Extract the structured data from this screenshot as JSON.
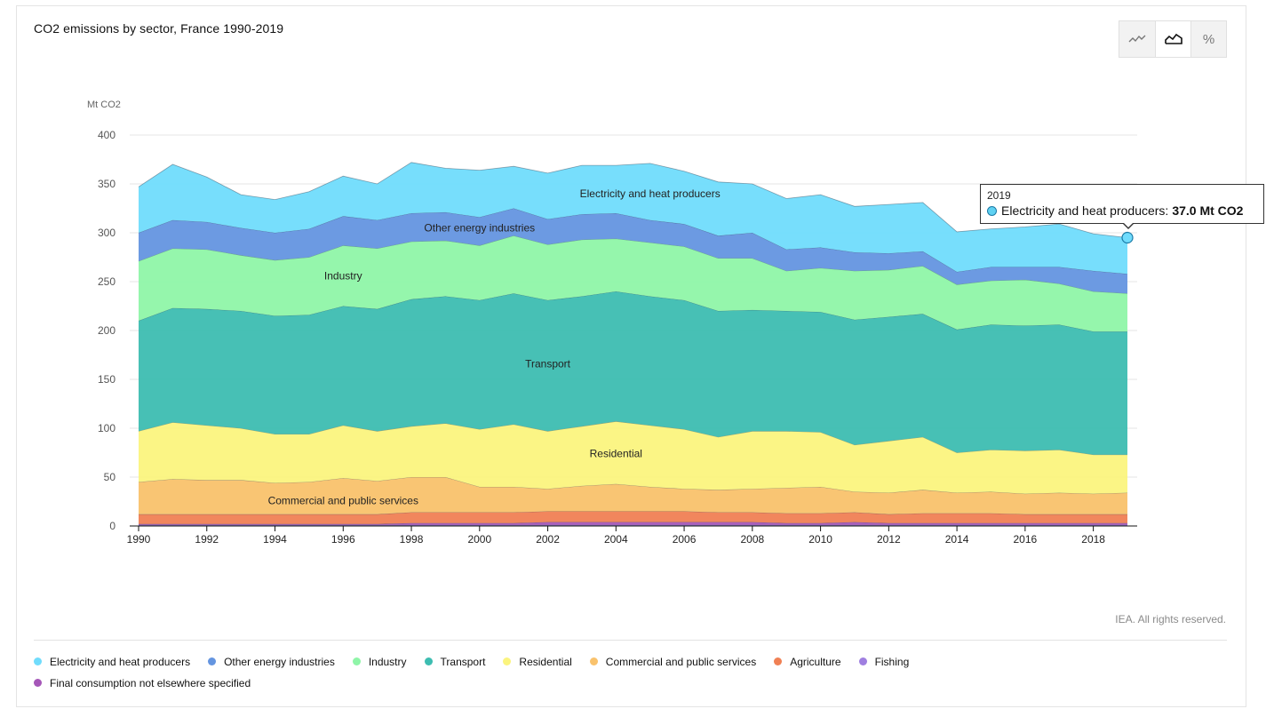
{
  "header": {
    "title": "CO2 emissions by sector, France 1990-2019"
  },
  "toggles": [
    {
      "name": "line-chart-toggle-icon",
      "glyph": "⌇",
      "active": false
    },
    {
      "name": "area-chart-toggle-icon",
      "glyph": "⛰",
      "active": true
    },
    {
      "name": "percent-toggle-icon",
      "glyph": "%",
      "active": false
    }
  ],
  "footer": {
    "credit": "IEA. All rights reserved."
  },
  "tooltip": {
    "year": "2019",
    "series": "Electricity and heat producers:",
    "value": "37.0 Mt CO2",
    "color": "#5fd1f2"
  },
  "chart_data": {
    "type": "area",
    "stacked": true,
    "title": "CO2 emissions by sector, France 1990-2019",
    "ylabel": "Mt CO2",
    "xlabel": "",
    "ylim": [
      0,
      400
    ],
    "yticks": [
      0,
      50,
      100,
      150,
      200,
      250,
      300,
      350,
      400
    ],
    "xlim": [
      1990,
      2019
    ],
    "xticks": [
      1990,
      1992,
      1994,
      1996,
      1998,
      2000,
      2002,
      2004,
      2006,
      2008,
      2010,
      2012,
      2014,
      2016,
      2018
    ],
    "grid": true,
    "legend_position": "bottom",
    "x": [
      1990,
      1991,
      1992,
      1993,
      1994,
      1995,
      1996,
      1997,
      1998,
      1999,
      2000,
      2001,
      2002,
      2003,
      2004,
      2005,
      2006,
      2007,
      2008,
      2009,
      2010,
      2011,
      2012,
      2013,
      2014,
      2015,
      2016,
      2017,
      2018,
      2019
    ],
    "series": [
      {
        "name": "Fishing",
        "color": "#9f7fe0",
        "values": [
          1,
          1,
          1,
          1,
          1,
          1,
          1,
          1,
          1,
          1,
          1,
          1,
          1,
          1,
          1,
          1,
          1,
          1,
          1,
          1,
          1,
          1,
          1,
          1,
          1,
          1,
          1,
          1,
          1,
          1
        ]
      },
      {
        "name": "Final consumption not elsewhere specified",
        "color": "#a557b8",
        "values": [
          1,
          1,
          1,
          1,
          1,
          1,
          1,
          1,
          2,
          2,
          2,
          2,
          3,
          3,
          3,
          3,
          3,
          3,
          3,
          2,
          2,
          3,
          2,
          2,
          2,
          2,
          2,
          2,
          2,
          2
        ]
      },
      {
        "name": "Agriculture",
        "color": "#f08054",
        "values": [
          10,
          10,
          10,
          10,
          10,
          10,
          10,
          10,
          11,
          11,
          11,
          11,
          11,
          11,
          11,
          11,
          11,
          10,
          10,
          10,
          10,
          10,
          9,
          10,
          10,
          10,
          9,
          9,
          9,
          9
        ]
      },
      {
        "name": "Commercial and public services",
        "color": "#f9c26c",
        "values": [
          33,
          36,
          35,
          35,
          32,
          33,
          37,
          34,
          36,
          36,
          26,
          26,
          23,
          26,
          28,
          25,
          23,
          23,
          24,
          26,
          27,
          21,
          22,
          24,
          21,
          22,
          21,
          22,
          21,
          22
        ]
      },
      {
        "name": "Residential",
        "color": "#fbf47e",
        "values": [
          52,
          58,
          56,
          53,
          50,
          49,
          54,
          51,
          52,
          55,
          59,
          64,
          59,
          61,
          64,
          63,
          61,
          54,
          59,
          58,
          56,
          48,
          53,
          54,
          41,
          43,
          44,
          44,
          40,
          39
        ]
      },
      {
        "name": "Transport",
        "color": "#3dbdb1",
        "values": [
          113,
          117,
          119,
          120,
          121,
          122,
          122,
          125,
          130,
          130,
          132,
          134,
          134,
          133,
          133,
          132,
          132,
          129,
          124,
          123,
          123,
          128,
          127,
          126,
          126,
          128,
          128,
          128,
          126,
          126
        ]
      },
      {
        "name": "Industry",
        "color": "#8ff5a8",
        "values": [
          61,
          61,
          61,
          57,
          57,
          59,
          62,
          62,
          59,
          57,
          56,
          59,
          57,
          58,
          54,
          55,
          55,
          54,
          53,
          41,
          45,
          50,
          48,
          49,
          46,
          45,
          47,
          42,
          41,
          39
        ]
      },
      {
        "name": "Other energy industries",
        "color": "#6495e0",
        "values": [
          29,
          29,
          28,
          28,
          28,
          29,
          30,
          29,
          29,
          29,
          29,
          28,
          26,
          26,
          26,
          23,
          23,
          23,
          26,
          22,
          21,
          19,
          17,
          15,
          13,
          14,
          13,
          17,
          21,
          20
        ]
      },
      {
        "name": "Electricity and heat producers",
        "color": "#70dcfc",
        "values": [
          47,
          57,
          46,
          34,
          34,
          38,
          41,
          37,
          52,
          45,
          48,
          43,
          47,
          50,
          49,
          58,
          54,
          55,
          50,
          52,
          54,
          47,
          50,
          50,
          41,
          39,
          41,
          44,
          38,
          37
        ]
      }
    ],
    "annotations": [
      {
        "series": "Electricity and heat producers",
        "label": "Electricity and heat producers",
        "x": 2005,
        "y": 340
      },
      {
        "series": "Other energy industries",
        "label": "Other energy industries",
        "x": 2000,
        "y": 305
      },
      {
        "series": "Industry",
        "label": "Industry",
        "x": 1996,
        "y": 256
      },
      {
        "series": "Transport",
        "label": "Transport",
        "x": 2002,
        "y": 166
      },
      {
        "series": "Residential",
        "label": "Residential",
        "x": 2004,
        "y": 74
      },
      {
        "series": "Commercial and public services",
        "label": "Commercial and public services",
        "x": 1996,
        "y": 26
      }
    ],
    "legend_order": [
      "Electricity and heat producers",
      "Other energy industries",
      "Industry",
      "Transport",
      "Residential",
      "Commercial and public services",
      "Agriculture",
      "Fishing",
      "Final consumption not elsewhere specified"
    ],
    "highlight": {
      "series": "Electricity and heat producers",
      "x": 2019,
      "y": 295
    }
  }
}
